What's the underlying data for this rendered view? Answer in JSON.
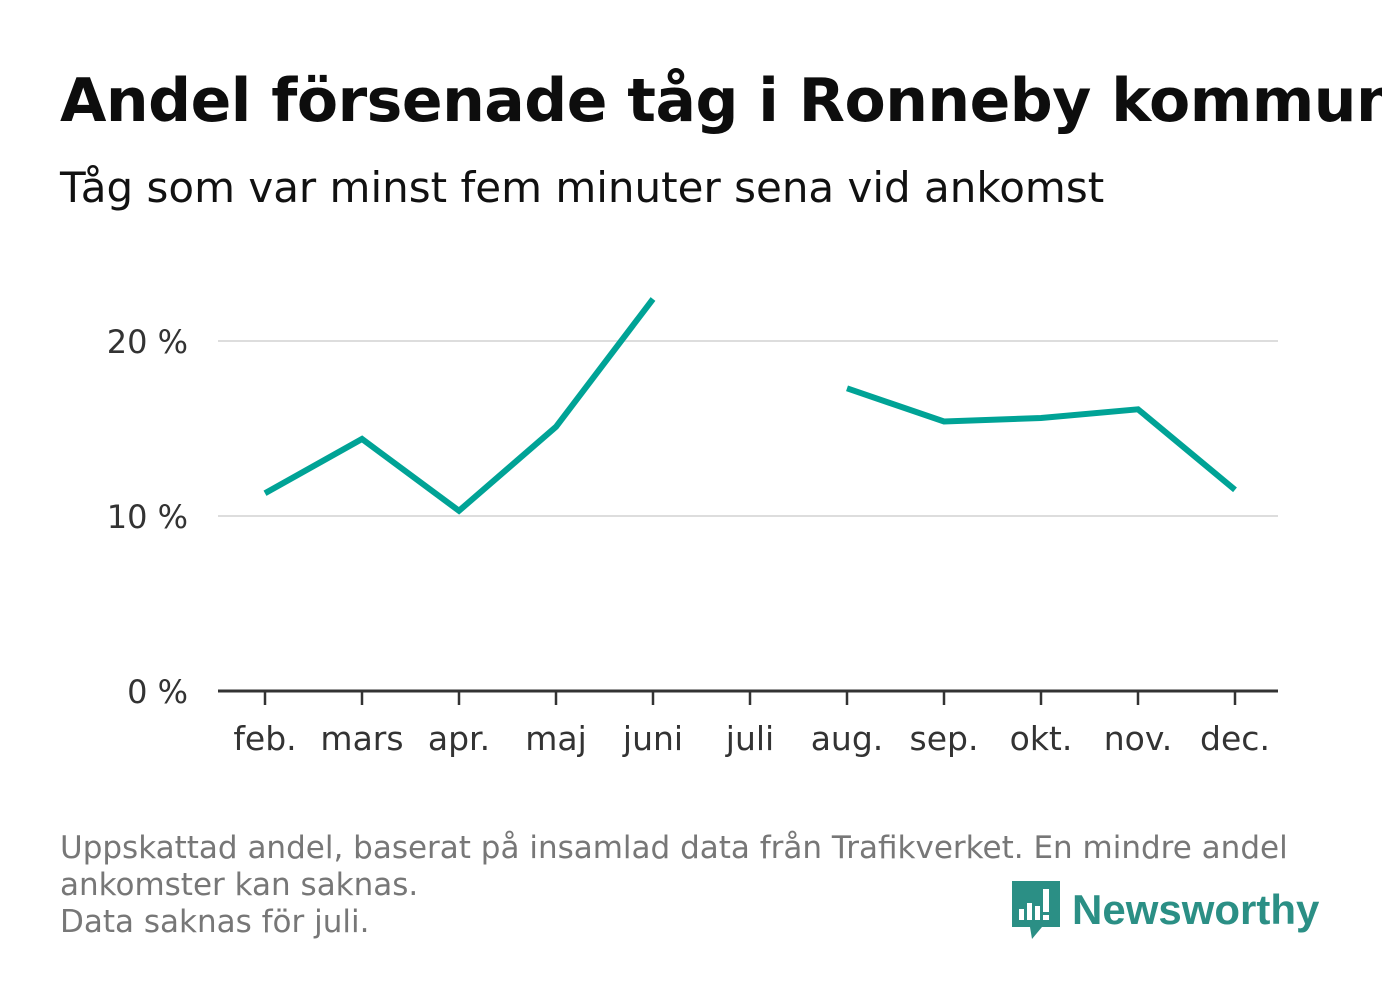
{
  "title": "Andel försenade tåg i Ronneby kommun",
  "subtitle": "Tåg som var minst fem minuter sena vid ankomst",
  "footnote": {
    "line1": "Uppskattad andel, baserat på insamlad data från Trafikverket. En mindre andel",
    "line2": "ankomster kan saknas.",
    "line3": "Data saknas för juli."
  },
  "brand": {
    "name": "Newsworthy",
    "icon": "newsworthy-logo-icon",
    "color": "#2b8f85"
  },
  "colors": {
    "line": "#00a396",
    "grid": "#dddddd",
    "axis": "#333333",
    "tick_text": "#333333"
  },
  "chart_data": {
    "type": "line",
    "categories": [
      "feb.",
      "mars",
      "apr.",
      "maj",
      "juni",
      "juli",
      "aug.",
      "sep.",
      "okt.",
      "nov.",
      "dec."
    ],
    "series": [
      {
        "values": [
          11.3,
          14.4,
          10.3,
          15.1,
          22.4,
          null,
          17.3,
          15.4,
          15.6,
          16.1,
          11.5
        ]
      }
    ],
    "ylim": [
      0,
      25
    ],
    "yticks": [
      0,
      10,
      20
    ],
    "ytick_labels": [
      "0 %",
      "10 %",
      "20 %"
    ],
    "xlabel": "",
    "ylabel": "",
    "grid": true
  }
}
